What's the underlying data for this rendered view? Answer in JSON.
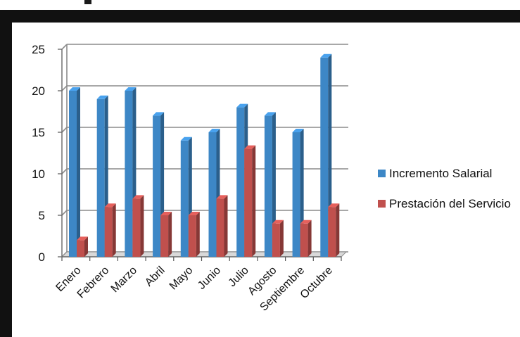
{
  "chart_data": {
    "type": "bar",
    "categories": [
      "Enero",
      "Febrero",
      "Marzo",
      "Abril",
      "Mayo",
      "Junio",
      "Julio",
      "Agosto",
      "Septiembre",
      "Octubre"
    ],
    "series": [
      {
        "name": "Incremento Salarial",
        "values": [
          20,
          19,
          20,
          17,
          14,
          15,
          18,
          17,
          15,
          24
        ],
        "color": "#3d87c6"
      },
      {
        "name": "Prestación del Servicio",
        "values": [
          2,
          6,
          7,
          5,
          5,
          7,
          13,
          4,
          4,
          6
        ],
        "color": "#c0504d"
      }
    ],
    "yticks": [
      "0",
      "5",
      "10",
      "15",
      "20",
      "25"
    ],
    "ylim": [
      0,
      25
    ],
    "grid": true,
    "legend_position": "right"
  }
}
